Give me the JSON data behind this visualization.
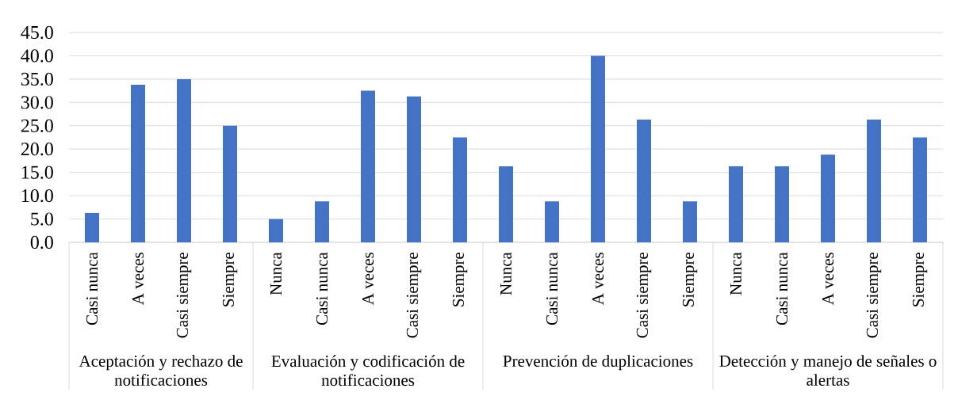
{
  "chart_data": [
    {
      "type": "bar",
      "xlabel": "Aceptación y rechazo de notificaciones",
      "categories": [
        "Casi nunca",
        "A veces",
        "Casi siempre",
        "Siempre"
      ],
      "values": [
        6.3,
        33.8,
        35.0,
        25.0
      ],
      "color": "#4472c4",
      "ylim": [
        0,
        45
      ],
      "yticks": [
        {
          "value": 0,
          "label": "0.0"
        },
        {
          "value": 5,
          "label": "5.0"
        },
        {
          "value": 10,
          "label": "10.0"
        },
        {
          "value": 15,
          "label": "15.0"
        },
        {
          "value": 20,
          "label": "20.0"
        },
        {
          "value": 25,
          "label": "25.0"
        },
        {
          "value": 30,
          "label": "30.0"
        },
        {
          "value": 35,
          "label": "35.0"
        },
        {
          "value": 40,
          "label": "40.0"
        },
        {
          "value": 45,
          "label": "45.0"
        }
      ],
      "grid": "y"
    },
    {
      "type": "bar",
      "xlabel": "Evaluación y codificación de notificaciones",
      "categories": [
        "Nunca",
        "Casi nunca",
        "A veces",
        "Casi siempre",
        "Siempre"
      ],
      "values": [
        5.0,
        8.8,
        32.5,
        31.3,
        22.5
      ],
      "color": "#4472c4",
      "ylim": [
        0,
        45
      ],
      "yticks": [
        0,
        5,
        10,
        15,
        20,
        25,
        30,
        35,
        40,
        45
      ],
      "grid": "y",
      "tick_labels": "x"
    },
    {
      "type": "bar",
      "xlabel": "Prevención de duplicaciones",
      "categories": [
        "Nunca",
        "Casi nunca",
        "A veces",
        "Casi siempre",
        "Siempre"
      ],
      "values": [
        16.3,
        8.8,
        40.0,
        26.3,
        8.8
      ],
      "color": "#4472c4",
      "ylim": [
        0,
        45
      ],
      "yticks": [
        0,
        5,
        10,
        15,
        20,
        25,
        30,
        35,
        40,
        45
      ],
      "grid": "y",
      "tick_labels": "x"
    },
    {
      "type": "bar",
      "xlabel": "Detección y manejo de señales o alertas",
      "categories": [
        "Nunca",
        "Casi nunca",
        "A veces",
        "Casi siempre",
        "Siempre"
      ],
      "values": [
        16.3,
        16.3,
        18.8,
        26.3,
        22.5
      ],
      "color": "#4472c4",
      "ylim": [
        0,
        45
      ],
      "yticks": [
        0,
        5,
        10,
        15,
        20,
        25,
        30,
        35,
        40,
        45
      ],
      "grid": "y",
      "tick_labels": "x"
    }
  ]
}
